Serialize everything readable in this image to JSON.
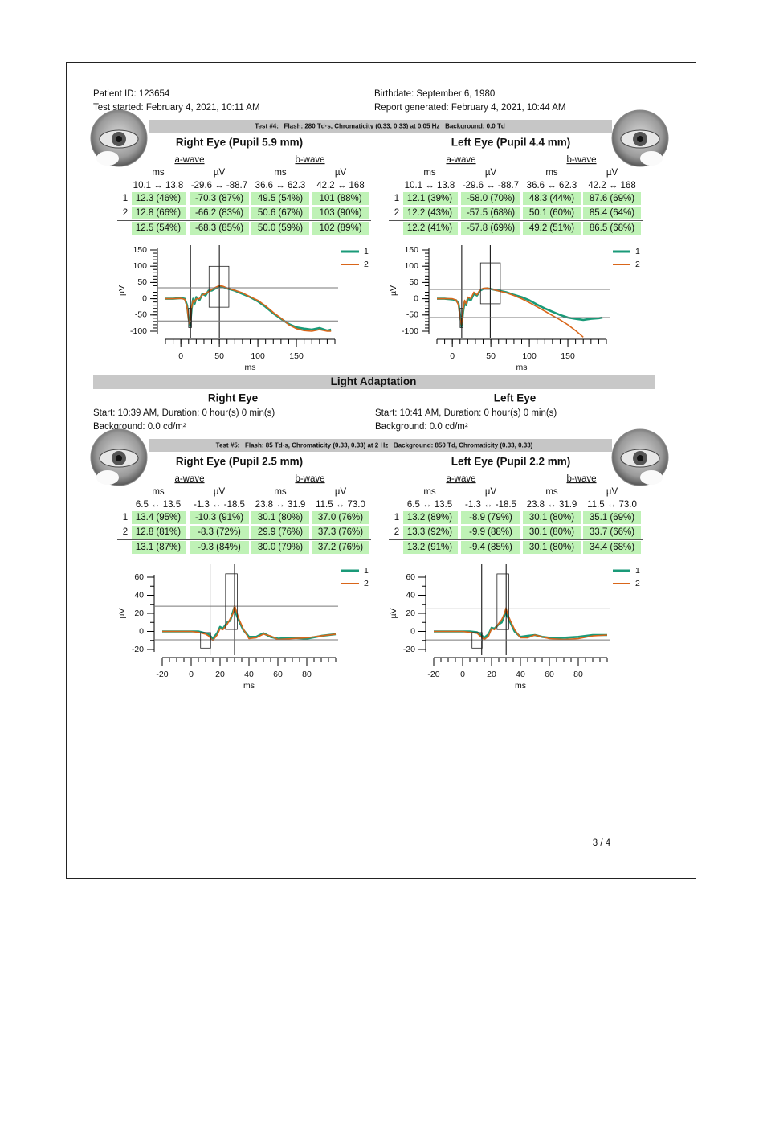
{
  "header": {
    "patient_id": "Patient ID: 123654",
    "test_started": "Test started: February 4, 2021, 10:11 AM",
    "birthdate": "Birthdate: September 6, 1980",
    "report_generated": "Report generated: February 4, 2021, 10:44 AM"
  },
  "test4": {
    "title": "Test #4:   Flash: 280 Td·s, Chromaticity (0.33, 0.33) at 0.05 Hz   Background: 0.0 Td",
    "eyes": [
      {
        "title": "Right Eye (Pupil 5.9 mm)",
        "table": {
          "groups": [
            "a-wave",
            "b-wave"
          ],
          "columns": [
            "ms",
            "µV",
            "ms",
            "µV"
          ],
          "range": [
            "10.1 ↔ 13.8",
            "-29.6 ↔ -88.7",
            "36.6 ↔ 62.3",
            "42.2 ↔ 168"
          ],
          "rows": [
            {
              "label": "1",
              "cells": [
                "12.3 (46%)",
                "-70.3 (87%)",
                "49.5 (54%)",
                "101 (88%)"
              ]
            },
            {
              "label": "2",
              "cells": [
                "12.8 (66%)",
                "-66.2 (83%)",
                "50.6 (67%)",
                "103 (90%)"
              ]
            }
          ],
          "average": [
            "12.5 (54%)",
            "-68.3 (85%)",
            "50.0 (59%)",
            "102 (89%)"
          ]
        },
        "chart": {
          "type": "line",
          "xlabel": "ms",
          "ylabel": "µV",
          "xlim": [
            -20,
            200
          ],
          "ylim": [
            -100,
            150
          ],
          "xticks": [
            0,
            50,
            100,
            150
          ],
          "yticks": [
            -100,
            -50,
            0,
            50,
            100,
            150
          ],
          "x_minor_step": 10,
          "y_minor_step": 10,
          "x": [
            -20,
            -10,
            0,
            5,
            8,
            10,
            12,
            14,
            16,
            18,
            20,
            24,
            28,
            32,
            36,
            40,
            45,
            50,
            55,
            60,
            70,
            80,
            90,
            100,
            110,
            120,
            130,
            140,
            150,
            160,
            170,
            180,
            190,
            195
          ],
          "series": [
            {
              "name": "1",
              "color": "#1a9a78",
              "values": [
                0,
                0,
                2,
                0,
                -20,
                -60,
                -85,
                -30,
                0,
                -15,
                5,
                -5,
                15,
                10,
                25,
                25,
                32,
                38,
                36,
                32,
                25,
                15,
                5,
                -8,
                -25,
                -45,
                -62,
                -78,
                -88,
                -92,
                -95,
                -90,
                -98,
                -95
              ]
            },
            {
              "name": "2",
              "color": "#d9661a",
              "values": [
                0,
                0,
                1,
                -2,
                -25,
                -65,
                -80,
                -25,
                -5,
                -10,
                0,
                0,
                12,
                15,
                22,
                28,
                35,
                40,
                38,
                33,
                26,
                18,
                6,
                -5,
                -22,
                -42,
                -60,
                -80,
                -92,
                -98,
                -100,
                -95,
                -100,
                -100
              ]
            }
          ]
        }
      },
      {
        "title": "Left Eye (Pupil 4.4 mm)",
        "table": {
          "groups": [
            "a-wave",
            "b-wave"
          ],
          "columns": [
            "ms",
            "µV",
            "ms",
            "µV"
          ],
          "range": [
            "10.1 ↔ 13.8",
            "-29.6 ↔ -88.7",
            "36.6 ↔ 62.3",
            "42.2 ↔ 168"
          ],
          "rows": [
            {
              "label": "1",
              "cells": [
                "12.1 (39%)",
                "-58.0 (70%)",
                "48.3 (44%)",
                "87.6 (69%)"
              ]
            },
            {
              "label": "2",
              "cells": [
                "12.2 (43%)",
                "-57.5 (68%)",
                "50.1 (60%)",
                "85.4 (64%)"
              ]
            }
          ],
          "average": [
            "12.2 (41%)",
            "-57.8 (69%)",
            "49.2 (51%)",
            "86.5 (68%)"
          ]
        },
        "chart": {
          "type": "line",
          "xlabel": "ms",
          "ylabel": "µV",
          "xlim": [
            -20,
            200
          ],
          "ylim": [
            -100,
            150
          ],
          "xticks": [
            0,
            50,
            100,
            150
          ],
          "yticks": [
            -100,
            -50,
            0,
            50,
            100,
            150
          ],
          "x_minor_step": 10,
          "y_minor_step": 10,
          "x": [
            -20,
            -10,
            0,
            5,
            8,
            10,
            12,
            14,
            16,
            18,
            20,
            24,
            28,
            32,
            36,
            40,
            45,
            50,
            60,
            70,
            80,
            90,
            100,
            110,
            120,
            130,
            140,
            150,
            160,
            170,
            180,
            190,
            195
          ],
          "series": [
            {
              "name": "1",
              "color": "#1a9a78",
              "values": [
                0,
                0,
                -2,
                -5,
                -15,
                -50,
                -85,
                -40,
                -10,
                -20,
                0,
                -5,
                15,
                10,
                25,
                30,
                32,
                30,
                25,
                20,
                12,
                5,
                -5,
                -18,
                -30,
                -40,
                -50,
                -58,
                -62,
                -65,
                -62,
                -60,
                -58
              ]
            },
            {
              "name": "2",
              "color": "#d9661a",
              "values": [
                0,
                0,
                0,
                -4,
                -20,
                -60,
                -80,
                -35,
                -5,
                -15,
                5,
                0,
                20,
                12,
                28,
                32,
                33,
                30,
                24,
                18,
                10,
                0,
                -12,
                -25,
                -38,
                -52,
                -65,
                -80,
                -98,
                -118,
                null,
                null,
                null
              ]
            }
          ]
        }
      }
    ]
  },
  "light_adaptation": {
    "title": "Light Adaptation",
    "right": {
      "title": "Right Eye",
      "start": "Start: 10:39 AM, Duration: 0 hour(s) 0 min(s)",
      "background": "Background: 0.0 cd/m²"
    },
    "left": {
      "title": "Left Eye",
      "start": "Start: 10:41 AM, Duration: 0 hour(s) 0 min(s)",
      "background": "Background: 0.0 cd/m²"
    }
  },
  "test5": {
    "title": "Test #5:   Flash: 85 Td·s, Chromaticity (0.33, 0.33) at 2 Hz   Background: 850 Td, Chromaticity (0.33, 0.33)",
    "eyes": [
      {
        "title": "Right Eye (Pupil 2.5 mm)",
        "table": {
          "groups": [
            "a-wave",
            "b-wave"
          ],
          "columns": [
            "ms",
            "µV",
            "ms",
            "µV"
          ],
          "range": [
            "6.5 ↔ 13.5",
            "-1.3 ↔ -18.5",
            "23.8 ↔ 31.9",
            "11.5 ↔ 73.0"
          ],
          "rows": [
            {
              "label": "1",
              "cells": [
                "13.4 (95%)",
                "-10.3 (91%)",
                "30.1 (80%)",
                "37.0 (76%)"
              ]
            },
            {
              "label": "2",
              "cells": [
                "12.8 (81%)",
                "-8.3 (72%)",
                "29.9 (76%)",
                "37.3 (76%)"
              ]
            }
          ],
          "average": [
            "13.1 (87%)",
            "-9.3 (84%)",
            "30.0 (79%)",
            "37.2 (76%)"
          ]
        },
        "chart": {
          "type": "line",
          "xlabel": "ms",
          "ylabel": "µV",
          "xlim": [
            -20,
            100
          ],
          "ylim": [
            -20,
            60
          ],
          "xticks": [
            -20,
            0,
            20,
            40,
            60,
            80
          ],
          "yticks": [
            -20,
            0,
            20,
            40,
            60
          ],
          "x_minor_step": 5,
          "y_minor_step": 10,
          "x": [
            -20,
            -10,
            0,
            5,
            10,
            12,
            15,
            18,
            20,
            22,
            25,
            27,
            29,
            30,
            31,
            33,
            36,
            40,
            45,
            50,
            55,
            60,
            70,
            80,
            90,
            100
          ],
          "series": [
            {
              "name": "1",
              "color": "#1a9a78",
              "values": [
                0,
                0,
                0,
                0,
                -2,
                -3,
                -8,
                -2,
                5,
                3,
                10,
                12,
                22,
                27,
                20,
                12,
                2,
                -6,
                -6,
                -2,
                -6,
                -8,
                -7,
                -8,
                -5,
                -3
              ]
            },
            {
              "name": "2",
              "color": "#d9661a",
              "values": [
                0,
                0,
                0,
                -1,
                -3,
                -5,
                -10,
                -4,
                3,
                2,
                8,
                14,
                20,
                29,
                24,
                14,
                3,
                -8,
                -7,
                -3,
                -5,
                -9,
                -8,
                -7,
                -5,
                -3
              ]
            }
          ]
        }
      },
      {
        "title": "Left Eye (Pupil 2.2 mm)",
        "table": {
          "groups": [
            "a-wave",
            "b-wave"
          ],
          "columns": [
            "ms",
            "µV",
            "ms",
            "µV"
          ],
          "range": [
            "6.5 ↔ 13.5",
            "-1.3 ↔ -18.5",
            "23.8 ↔ 31.9",
            "11.5 ↔ 73.0"
          ],
          "rows": [
            {
              "label": "1",
              "cells": [
                "13.2 (89%)",
                "-8.9 (79%)",
                "30.1 (80%)",
                "35.1 (69%)"
              ]
            },
            {
              "label": "2",
              "cells": [
                "13.3 (92%)",
                "-9.9 (88%)",
                "30.1 (80%)",
                "33.7 (66%)"
              ]
            }
          ],
          "average": [
            "13.2 (91%)",
            "-9.4 (85%)",
            "30.1 (80%)",
            "34.4 (68%)"
          ]
        },
        "chart": {
          "type": "line",
          "xlabel": "ms",
          "ylabel": "µV",
          "xlim": [
            -20,
            100
          ],
          "ylim": [
            -20,
            60
          ],
          "xticks": [
            -20,
            0,
            20,
            40,
            60,
            80
          ],
          "yticks": [
            -20,
            0,
            20,
            40,
            60
          ],
          "x_minor_step": 5,
          "y_minor_step": 10,
          "x": [
            -20,
            -10,
            0,
            5,
            10,
            12,
            15,
            18,
            20,
            22,
            25,
            27,
            29,
            30,
            31,
            33,
            36,
            40,
            45,
            50,
            55,
            60,
            70,
            80,
            90,
            100
          ],
          "series": [
            {
              "name": "1",
              "color": "#1a9a78",
              "values": [
                0,
                0,
                0,
                0,
                -1,
                -3,
                -7,
                -3,
                4,
                3,
                8,
                10,
                18,
                24,
                17,
                10,
                0,
                -6,
                -5,
                -4,
                -6,
                -7,
                -7,
                -6,
                -4,
                -4
              ]
            },
            {
              "name": "2",
              "color": "#d9661a",
              "values": [
                0,
                0,
                0,
                -1,
                -2,
                -5,
                -9,
                -5,
                3,
                2,
                9,
                13,
                20,
                26,
                20,
                12,
                2,
                -7,
                -7,
                -4,
                -6,
                -8,
                -9,
                -8,
                -5,
                -4
              ]
            }
          ]
        }
      }
    ]
  },
  "page_number": "3 / 4"
}
